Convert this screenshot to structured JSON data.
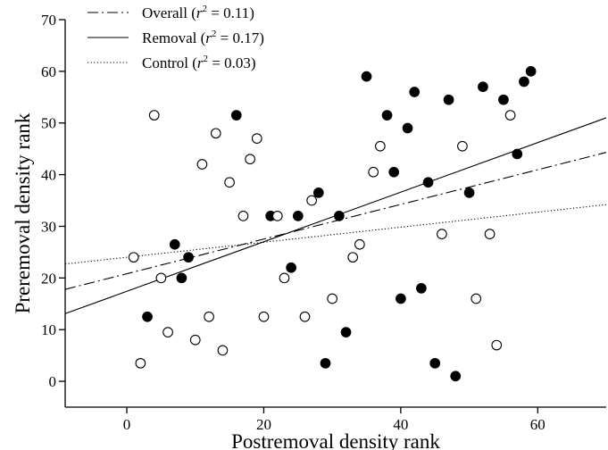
{
  "chart_data": {
    "type": "scatter",
    "title": "",
    "xlabel": "Postremoval density rank",
    "ylabel": "Preremoval density rank",
    "xlim": [
      -9,
      70
    ],
    "ylim": [
      -5,
      70
    ],
    "x_ticks": [
      0,
      20,
      40,
      60
    ],
    "y_ticks": [
      0,
      10,
      20,
      30,
      40,
      50,
      60,
      70
    ],
    "grid": false,
    "legend_position": "top-left",
    "legend": [
      {
        "prefix": "Overall (",
        "r": "r",
        "sup": "2",
        "suffix": " = 0.11)",
        "style": "dashdot"
      },
      {
        "prefix": "Removal (",
        "r": "r",
        "sup": "2",
        "suffix": " = 0.17)",
        "style": "solid"
      },
      {
        "prefix": "Control (",
        "r": "r",
        "sup": "2",
        "suffix": " = 0.03)",
        "style": "dotted"
      }
    ],
    "series": [
      {
        "marker": "filled-circle",
        "points": [
          [
            3,
            12.5
          ],
          [
            7,
            26.5
          ],
          [
            8,
            20
          ],
          [
            9,
            24
          ],
          [
            16,
            51.5
          ],
          [
            21,
            32
          ],
          [
            24,
            22
          ],
          [
            25,
            32
          ],
          [
            28,
            36.5
          ],
          [
            29,
            3.5
          ],
          [
            31,
            32
          ],
          [
            32,
            9.5
          ],
          [
            35,
            59
          ],
          [
            38,
            51.5
          ],
          [
            39,
            40.5
          ],
          [
            40,
            16
          ],
          [
            41,
            49
          ],
          [
            42,
            56
          ],
          [
            43,
            18
          ],
          [
            44,
            38.5
          ],
          [
            45,
            3.5
          ],
          [
            47,
            54.5
          ],
          [
            48,
            1
          ],
          [
            50,
            36.5
          ],
          [
            52,
            57
          ],
          [
            55,
            54.5
          ],
          [
            57,
            44
          ],
          [
            58,
            58
          ],
          [
            59,
            60
          ]
        ]
      },
      {
        "marker": "open-circle",
        "points": [
          [
            1,
            24
          ],
          [
            2,
            3.5
          ],
          [
            4,
            51.5
          ],
          [
            5,
            20
          ],
          [
            6,
            9.5
          ],
          [
            10,
            8
          ],
          [
            11,
            42
          ],
          [
            12,
            12.5
          ],
          [
            13,
            48
          ],
          [
            14,
            6
          ],
          [
            15,
            38.5
          ],
          [
            17,
            32
          ],
          [
            18,
            43
          ],
          [
            19,
            47
          ],
          [
            20,
            12.5
          ],
          [
            22,
            32
          ],
          [
            23,
            20
          ],
          [
            26,
            12.5
          ],
          [
            27,
            35
          ],
          [
            30,
            16
          ],
          [
            33,
            24
          ],
          [
            34,
            26.5
          ],
          [
            36,
            40.5
          ],
          [
            37,
            45.5
          ],
          [
            46,
            28.5
          ],
          [
            49,
            45.5
          ],
          [
            51,
            16
          ],
          [
            53,
            28.5
          ],
          [
            54,
            7
          ],
          [
            56,
            51.5
          ]
        ]
      }
    ],
    "lines": [
      {
        "style": "dashdot",
        "y_at_xmin": 17.8,
        "y_at_xmax": 44.3
      },
      {
        "style": "solid",
        "y_at_xmin": 13.1,
        "y_at_xmax": 51
      },
      {
        "style": "dotted",
        "y_at_xmin": 22.7,
        "y_at_xmax": 34.2
      }
    ]
  }
}
